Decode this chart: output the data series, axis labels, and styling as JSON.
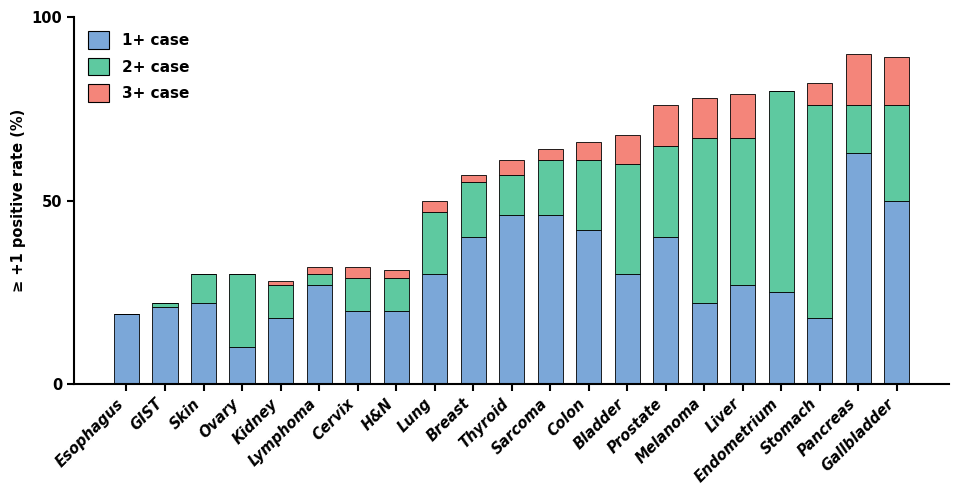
{
  "categories": [
    "Esophagus",
    "GIST",
    "Skin",
    "Ovary",
    "Kidney",
    "Lymphoma",
    "Cervix",
    "H&N",
    "Lung",
    "Breast",
    "Thyroid",
    "Sarcoma",
    "Colon",
    "Bladder",
    "Prostate",
    "Melanoma",
    "Liver",
    "Endometrium",
    "Stomach",
    "Pancreas",
    "Gallbladder"
  ],
  "bar1": [
    19,
    21,
    22,
    10,
    18,
    27,
    20,
    20,
    30,
    40,
    46,
    46,
    42,
    30,
    40,
    22,
    27,
    25,
    18,
    63,
    50
  ],
  "bar2": [
    0,
    1,
    8,
    20,
    9,
    3,
    9,
    9,
    17,
    15,
    11,
    15,
    19,
    30,
    25,
    45,
    40,
    55,
    58,
    13,
    26
  ],
  "bar3": [
    0,
    0,
    0,
    0,
    1,
    2,
    3,
    2,
    3,
    2,
    4,
    3,
    5,
    8,
    11,
    11,
    12,
    0,
    6,
    14,
    13
  ],
  "color1": "#7ba7d8",
  "color2": "#5ec9a0",
  "color3": "#f4857a",
  "ylabel": "≥ +1 positive rate (%)",
  "ylim": [
    0,
    100
  ],
  "yticks": [
    0,
    50,
    100
  ],
  "legend_labels": [
    "1+ case",
    "2+ case",
    "3+ case"
  ],
  "bar_width": 0.65,
  "tick_fontsize": 10.5,
  "legend_fontsize": 11,
  "figwidth": 9.6,
  "figheight": 4.96
}
